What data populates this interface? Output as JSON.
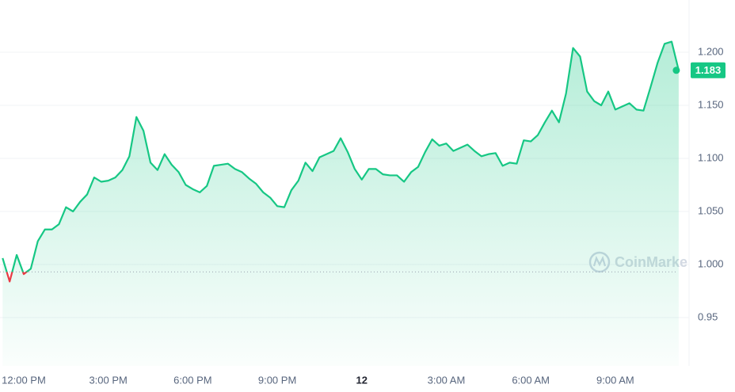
{
  "chart_data": {
    "type": "line",
    "watermark": "CoinMarketCap",
    "up_color": "#16c784",
    "down_color": "#ea3943",
    "baseline": 0.993,
    "categories": [
      null,
      null,
      null,
      "12:00 PM",
      null,
      null,
      null,
      null,
      null,
      null,
      null,
      null,
      null,
      null,
      null,
      "3:00 PM",
      null,
      null,
      null,
      null,
      null,
      null,
      null,
      null,
      null,
      null,
      null,
      "6:00 PM",
      null,
      null,
      null,
      null,
      null,
      null,
      null,
      null,
      null,
      null,
      null,
      "9:00 PM",
      null,
      null,
      null,
      null,
      null,
      null,
      null,
      null,
      null,
      null,
      null,
      "12",
      null,
      null,
      null,
      null,
      null,
      null,
      null,
      null,
      null,
      null,
      null,
      "3:00 AM",
      null,
      null,
      null,
      null,
      null,
      null,
      null,
      null,
      null,
      null,
      null,
      "6:00 AM",
      null,
      null,
      null,
      null,
      null,
      null,
      null,
      null,
      null,
      null,
      null,
      "9:00 AM",
      null,
      null,
      null,
      null,
      null,
      null,
      null,
      null,
      null
    ],
    "values": [
      1.006,
      0.984,
      1.009,
      0.991,
      0.996,
      1.022,
      1.033,
      1.033,
      1.038,
      1.054,
      1.05,
      1.059,
      1.066,
      1.082,
      1.078,
      1.079,
      1.082,
      1.089,
      1.102,
      1.139,
      1.126,
      1.096,
      1.089,
      1.104,
      1.094,
      1.087,
      1.075,
      1.071,
      1.068,
      1.074,
      1.093,
      1.094,
      1.095,
      1.09,
      1.087,
      1.081,
      1.076,
      1.068,
      1.063,
      1.055,
      1.054,
      1.07,
      1.079,
      1.096,
      1.088,
      1.101,
      1.104,
      1.107,
      1.119,
      1.106,
      1.09,
      1.08,
      1.09,
      1.09,
      1.085,
      1.084,
      1.084,
      1.078,
      1.087,
      1.092,
      1.106,
      1.118,
      1.112,
      1.114,
      1.107,
      1.11,
      1.113,
      1.107,
      1.102,
      1.104,
      1.105,
      1.093,
      1.096,
      1.095,
      1.117,
      1.116,
      1.122,
      1.134,
      1.145,
      1.134,
      1.161,
      1.204,
      1.196,
      1.163,
      1.154,
      1.15,
      1.163,
      1.146,
      1.149,
      1.152,
      1.146,
      1.145,
      1.167,
      1.19,
      1.208,
      1.21,
      1.183
    ],
    "ylim": [
      0.9,
      1.25
    ],
    "yticks": [
      0.95,
      {
        "value": 1.0,
        "label": "1.000"
      },
      {
        "value": 1.05,
        "label": "1.050"
      },
      {
        "value": 1.1,
        "label": "1.100"
      },
      {
        "value": 1.15,
        "label": "1.150"
      },
      {
        "value": 1.2,
        "label": "1.200"
      }
    ],
    "grid": true
  }
}
